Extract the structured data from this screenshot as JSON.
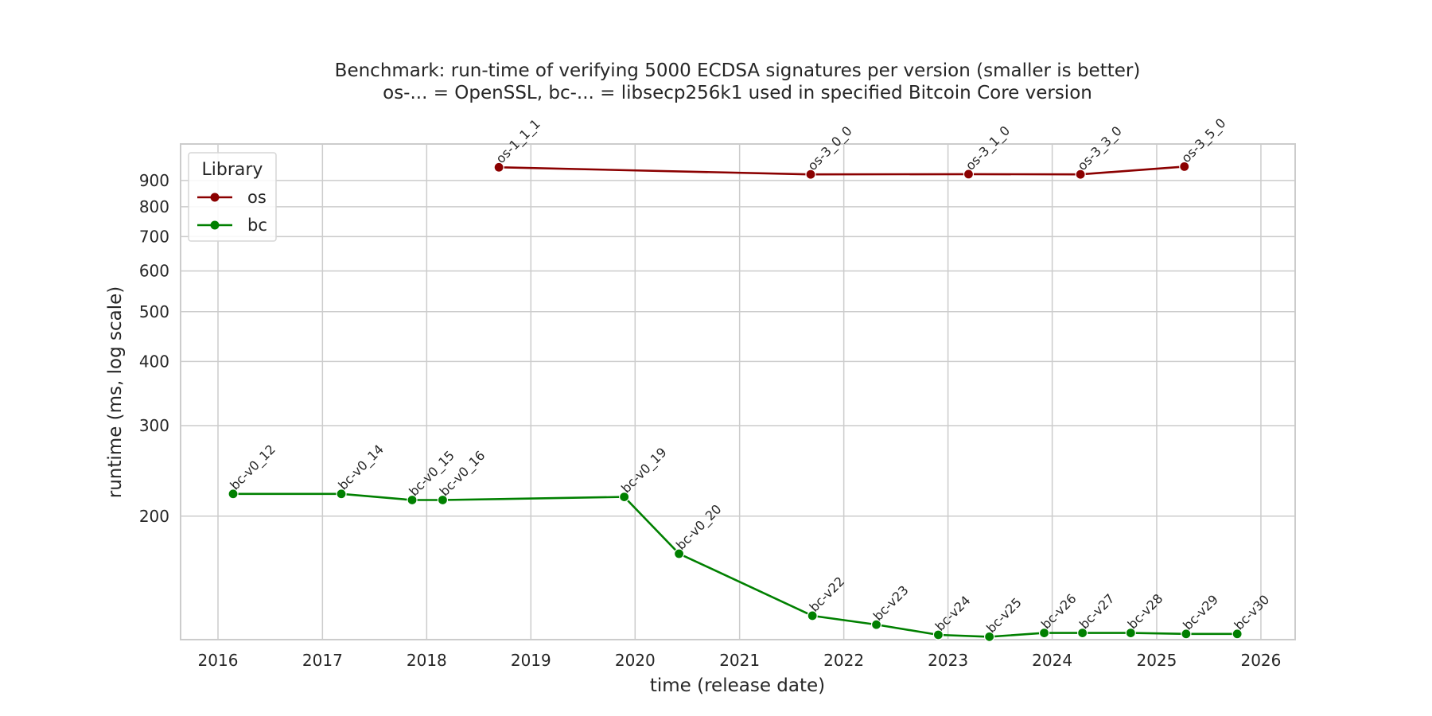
{
  "chart_data": {
    "type": "line",
    "title": "Benchmark: run-time of verifying 5000 ECDSA signatures per version (smaller is better)",
    "subtitle": "os-... = OpenSSL, bc-... = libsecp256k1 used in specified Bitcoin Core version",
    "xlabel": "time (release date)",
    "ylabel": "runtime (ms, log scale)",
    "yscale": "log",
    "xlim": [
      "2015-08-23",
      "2026-05-01"
    ],
    "ylim": [
      115,
      1060
    ],
    "x_ticks": [
      "2016",
      "2017",
      "2018",
      "2019",
      "2020",
      "2021",
      "2022",
      "2023",
      "2024",
      "2025",
      "2026"
    ],
    "y_ticks": [
      200,
      300,
      400,
      500,
      600,
      700,
      800,
      900
    ],
    "y_tick_labels": [
      "200",
      "300",
      "400",
      "500",
      "600",
      "700",
      "800",
      "900"
    ],
    "grid": true,
    "legend": {
      "title": "Library",
      "placement": "upper-left"
    },
    "series": [
      {
        "name": "os",
        "color": "#8b0000",
        "points": [
          {
            "label": "os-1_1_1",
            "date": "2018-09-11",
            "value": 955
          },
          {
            "label": "os-3_0_0",
            "date": "2021-09-07",
            "value": 925
          },
          {
            "label": "os-3_1_0",
            "date": "2023-03-14",
            "value": 926
          },
          {
            "label": "os-3_3_0",
            "date": "2024-04-09",
            "value": 925
          },
          {
            "label": "os-3_5_0",
            "date": "2025-04-08",
            "value": 958
          }
        ]
      },
      {
        "name": "bc",
        "color": "#008000",
        "points": [
          {
            "label": "bc-v0_12",
            "date": "2016-02-23",
            "value": 221
          },
          {
            "label": "bc-v0_14",
            "date": "2017-03-08",
            "value": 221
          },
          {
            "label": "bc-v0_15",
            "date": "2017-11-11",
            "value": 215
          },
          {
            "label": "bc-v0_16",
            "date": "2018-02-26",
            "value": 215
          },
          {
            "label": "bc-v0_19",
            "date": "2019-11-24",
            "value": 218
          },
          {
            "label": "bc-v0_20",
            "date": "2020-06-03",
            "value": 169
          },
          {
            "label": "bc-v22",
            "date": "2021-09-13",
            "value": 128
          },
          {
            "label": "bc-v23",
            "date": "2022-04-25",
            "value": 123
          },
          {
            "label": "bc-v24",
            "date": "2022-11-28",
            "value": 117.5
          },
          {
            "label": "bc-v25",
            "date": "2023-05-26",
            "value": 116.5
          },
          {
            "label": "bc-v26",
            "date": "2023-12-04",
            "value": 118.5
          },
          {
            "label": "bc-v27",
            "date": "2024-04-16",
            "value": 118.5
          },
          {
            "label": "bc-v28",
            "date": "2024-10-02",
            "value": 118.5
          },
          {
            "label": "bc-v29",
            "date": "2025-04-14",
            "value": 118
          },
          {
            "label": "bc-v30",
            "date": "2025-10-10",
            "value": 118
          }
        ]
      }
    ]
  }
}
